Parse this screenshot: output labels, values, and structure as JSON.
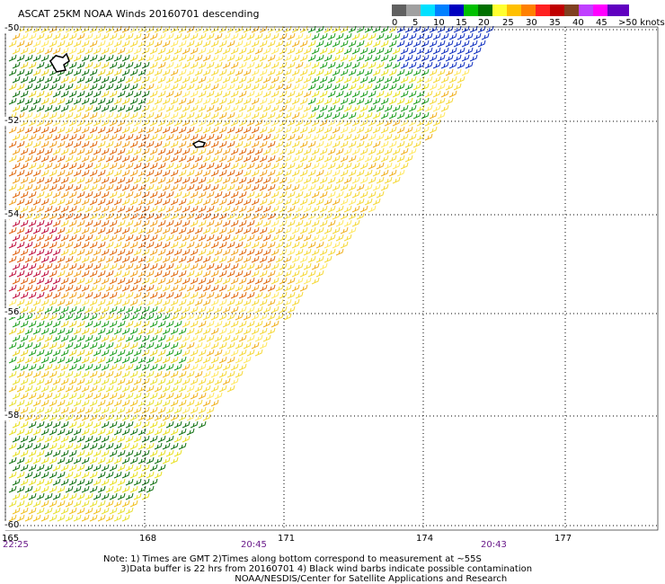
{
  "header": {
    "title": "ASCAT 25KM NOAA Winds 20160701 descending"
  },
  "speed_scale": {
    "labels": [
      "0",
      "5",
      "10",
      "15",
      "20",
      "25",
      "30",
      "35",
      "40",
      "45",
      ">50 knots"
    ],
    "colors": [
      "#606060",
      "#a0a0a0",
      "#00e0ff",
      "#0080ff",
      "#0000c0",
      "#00c000",
      "#007000",
      "#ffff30",
      "#ffc000",
      "#ff8000",
      "#ff2020",
      "#c00000",
      "#804020",
      "#c040ff",
      "#ff00ff",
      "#6000c0"
    ]
  },
  "map": {
    "lat_labels": [
      "-50",
      "-52",
      "-54",
      "-56",
      "-58",
      "-60"
    ],
    "lon_labels": [
      "165",
      "168",
      "171",
      "174",
      "177"
    ],
    "time_labels": [
      "22:25",
      "20:45",
      "20:43"
    ]
  },
  "notes": {
    "line1": "Note: 1) Times are GMT 2)Times along bottom correspond to measurement at ~55S",
    "line2": "      3)Data buffer is 22 hrs from 20160701 4) Black wind barbs indicate possible contamination",
    "line3": "                                              NOAA/NESDIS/Center for Satellite Applications and Research"
  }
}
